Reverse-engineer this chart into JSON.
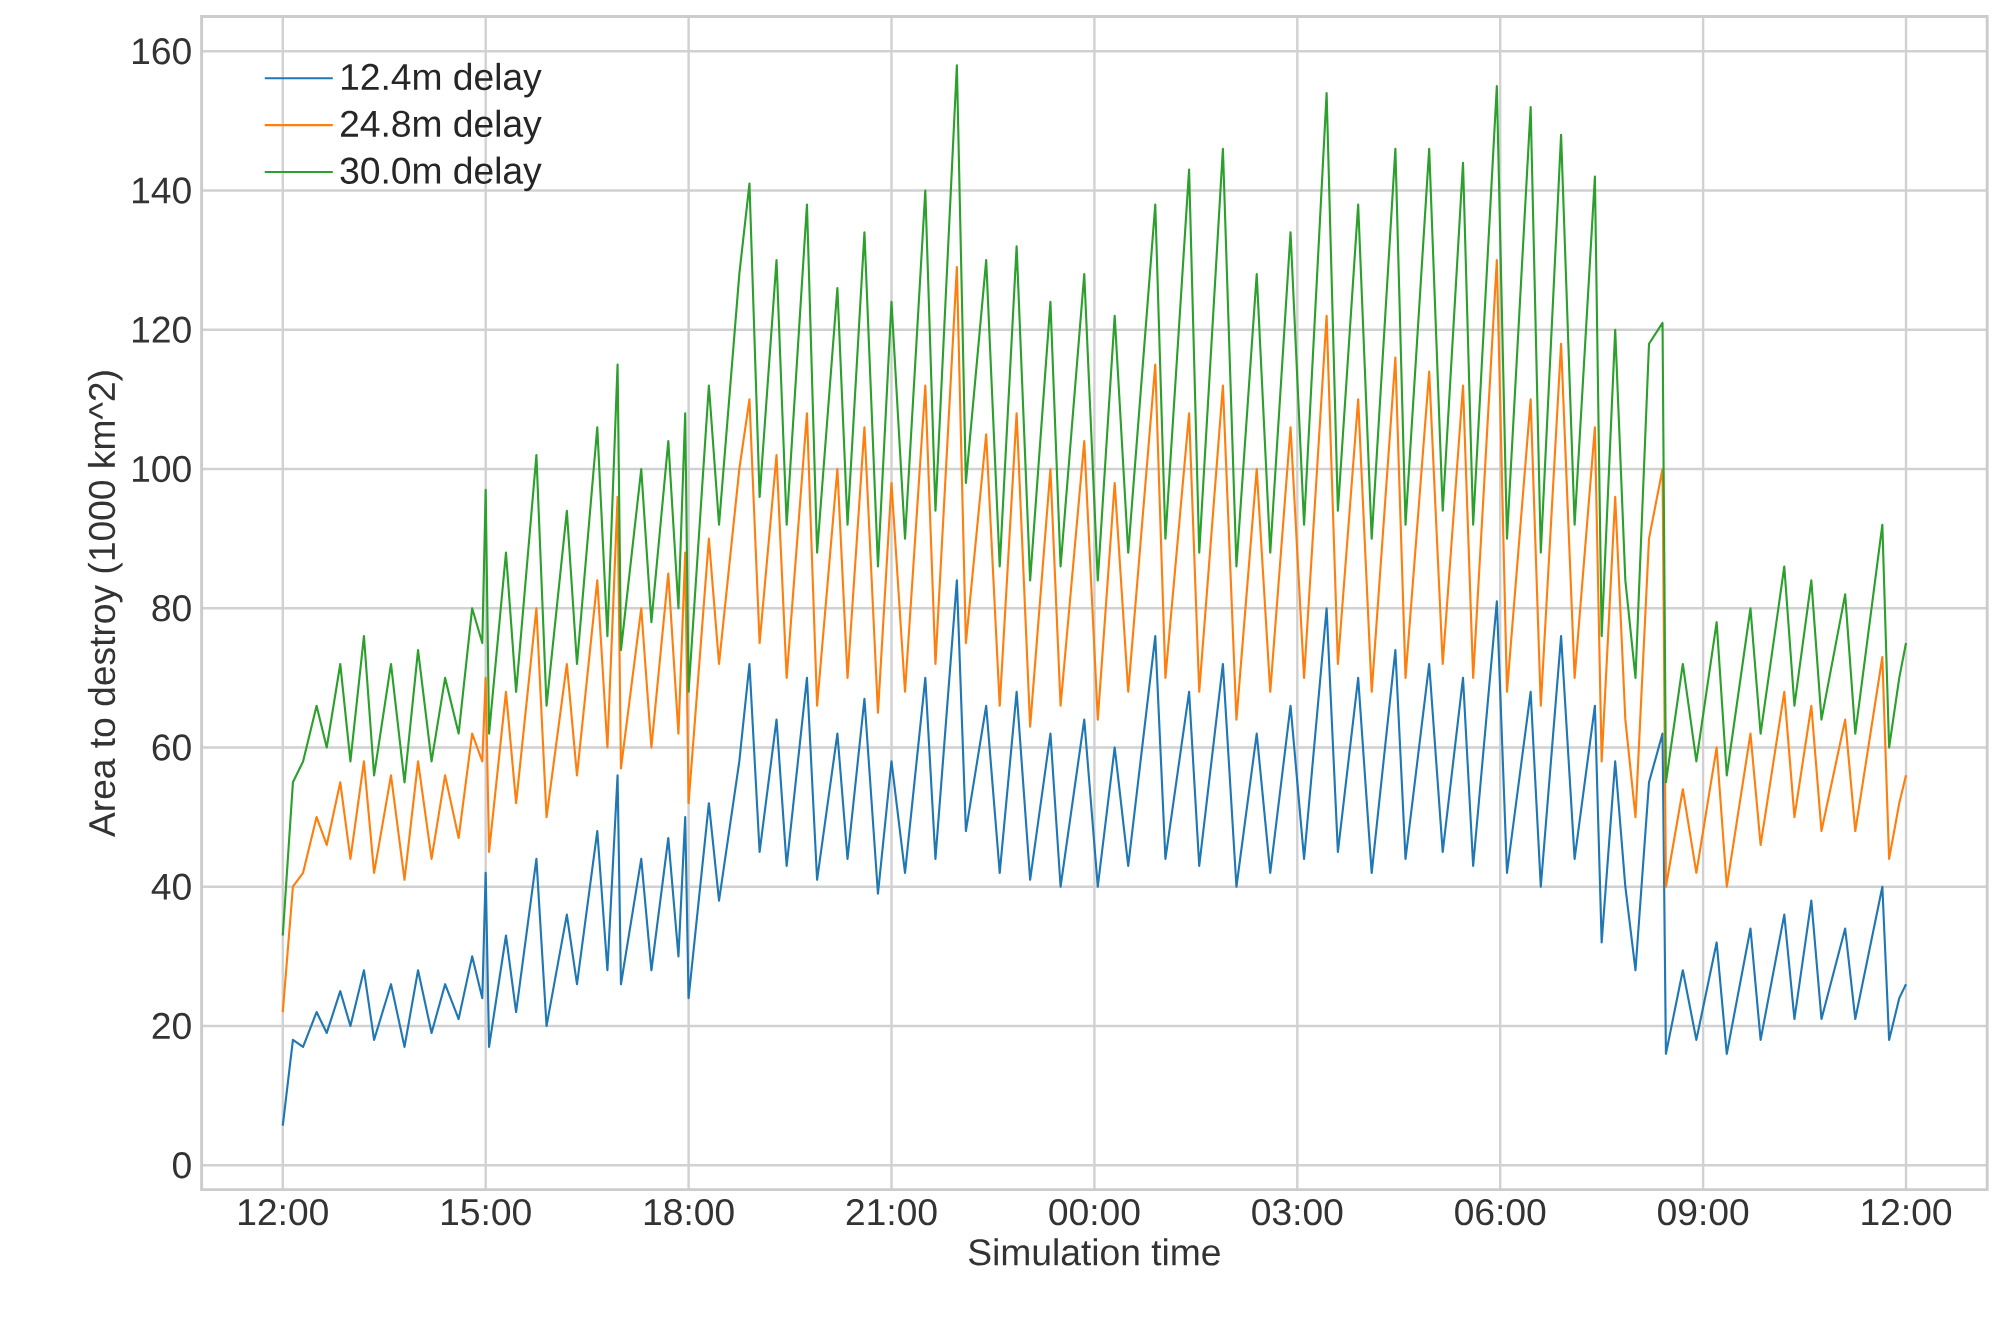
{
  "chart_data": {
    "type": "line",
    "xlabel": "Simulation time",
    "ylabel": "Area to destroy (1000 km^2)",
    "x": [
      "2000-01-01T12:00",
      "2000-01-01T12:09",
      "2000-01-01T12:18",
      "2000-01-01T12:30",
      "2000-01-01T12:39",
      "2000-01-01T12:51",
      "2000-01-01T13:00",
      "2000-01-01T13:12",
      "2000-01-01T13:21",
      "2000-01-01T13:36",
      "2000-01-01T13:48",
      "2000-01-01T14:00",
      "2000-01-01T14:12",
      "2000-01-01T14:24",
      "2000-01-01T14:36",
      "2000-01-01T14:48",
      "2000-01-01T14:57",
      "2000-01-01T15:00",
      "2000-01-01T15:03",
      "2000-01-01T15:18",
      "2000-01-01T15:27",
      "2000-01-01T15:45",
      "2000-01-01T15:54",
      "2000-01-01T16:12",
      "2000-01-01T16:21",
      "2000-01-01T16:39",
      "2000-01-01T16:48",
      "2000-01-01T16:57",
      "2000-01-01T17:00",
      "2000-01-01T17:18",
      "2000-01-01T17:27",
      "2000-01-01T17:42",
      "2000-01-01T17:51",
      "2000-01-01T17:57",
      "2000-01-01T18:00",
      "2000-01-01T18:18",
      "2000-01-01T18:27",
      "2000-01-01T18:45",
      "2000-01-01T18:54",
      "2000-01-01T19:03",
      "2000-01-01T19:18",
      "2000-01-01T19:27",
      "2000-01-01T19:45",
      "2000-01-01T19:54",
      "2000-01-01T20:12",
      "2000-01-01T20:21",
      "2000-01-01T20:36",
      "2000-01-01T20:48",
      "2000-01-01T21:00",
      "2000-01-01T21:12",
      "2000-01-01T21:30",
      "2000-01-01T21:39",
      "2000-01-01T21:58",
      "2000-01-01T22:06",
      "2000-01-01T22:24",
      "2000-01-01T22:36",
      "2000-01-01T22:51",
      "2000-01-01T23:03",
      "2000-01-01T23:21",
      "2000-01-01T23:30",
      "2000-01-01T23:51",
      "2000-01-02T00:03",
      "2000-01-02T00:18",
      "2000-01-02T00:30",
      "2000-01-02T00:54",
      "2000-01-02T01:03",
      "2000-01-02T01:24",
      "2000-01-02T01:33",
      "2000-01-02T01:54",
      "2000-01-02T02:06",
      "2000-01-02T02:24",
      "2000-01-02T02:36",
      "2000-01-02T02:54",
      "2000-01-02T03:06",
      "2000-01-02T03:26",
      "2000-01-02T03:36",
      "2000-01-02T03:54",
      "2000-01-02T04:06",
      "2000-01-02T04:27",
      "2000-01-02T04:36",
      "2000-01-02T04:57",
      "2000-01-02T05:09",
      "2000-01-02T05:27",
      "2000-01-02T05:36",
      "2000-01-02T05:57",
      "2000-01-02T06:06",
      "2000-01-02T06:27",
      "2000-01-02T06:36",
      "2000-01-02T06:54",
      "2000-01-02T07:06",
      "2000-01-02T07:24",
      "2000-01-02T07:30",
      "2000-01-02T07:42",
      "2000-01-02T07:51",
      "2000-01-02T08:00",
      "2000-01-02T08:12",
      "2000-01-02T08:24",
      "2000-01-02T08:27",
      "2000-01-02T08:42",
      "2000-01-02T08:54",
      "2000-01-02T09:12",
      "2000-01-02T09:21",
      "2000-01-02T09:42",
      "2000-01-02T09:51",
      "2000-01-02T10:12",
      "2000-01-02T10:21",
      "2000-01-02T10:36",
      "2000-01-02T10:45",
      "2000-01-02T11:06",
      "2000-01-02T11:15",
      "2000-01-02T11:39",
      "2000-01-02T11:45",
      "2000-01-02T11:54",
      "2000-01-02T12:00"
    ],
    "series": [
      {
        "name": "12.4m delay",
        "color": "#1f77b4",
        "values": [
          5.7,
          18,
          17,
          22,
          19,
          25,
          20,
          28,
          18,
          26,
          17,
          28,
          19,
          26,
          21,
          30,
          24,
          42,
          17,
          33,
          22,
          44,
          20,
          36,
          26,
          48,
          28,
          56,
          26,
          44,
          28,
          47,
          30,
          50,
          24,
          52,
          38,
          58,
          72,
          45,
          64,
          43,
          70,
          41,
          62,
          44,
          67,
          39,
          58,
          42,
          70,
          44,
          84,
          48,
          66,
          42,
          68,
          41,
          62,
          40,
          64,
          40,
          60,
          43,
          76,
          44,
          68,
          43,
          72,
          40,
          62,
          42,
          66,
          44,
          80,
          45,
          70,
          42,
          74,
          44,
          72,
          45,
          70,
          43,
          81,
          42,
          68,
          40,
          76,
          44,
          66,
          32,
          58,
          40,
          28,
          55,
          62,
          16,
          28,
          18,
          32,
          16,
          34,
          18,
          36,
          21,
          38,
          21,
          34,
          21,
          40,
          18,
          24,
          26
        ]
      },
      {
        "name": "24.8m delay",
        "color": "#ff7f0e",
        "values": [
          22,
          40,
          42,
          50,
          46,
          55,
          44,
          58,
          42,
          56,
          41,
          58,
          44,
          56,
          47,
          62,
          58,
          70,
          45,
          68,
          52,
          80,
          50,
          72,
          56,
          84,
          60,
          96,
          57,
          80,
          60,
          85,
          62,
          88,
          52,
          90,
          72,
          100,
          110,
          75,
          102,
          70,
          108,
          66,
          100,
          70,
          106,
          65,
          98,
          68,
          112,
          72,
          129,
          75,
          105,
          66,
          108,
          63,
          100,
          66,
          104,
          64,
          98,
          68,
          115,
          70,
          108,
          68,
          112,
          64,
          100,
          68,
          106,
          70,
          122,
          72,
          110,
          68,
          116,
          70,
          114,
          72,
          112,
          70,
          130,
          68,
          110,
          66,
          118,
          70,
          106,
          58,
          96,
          64,
          50,
          90,
          100,
          40,
          54,
          42,
          60,
          40,
          62,
          46,
          68,
          50,
          66,
          48,
          64,
          48,
          73,
          44,
          52,
          56
        ]
      },
      {
        "name": "30.0m delay",
        "color": "#2ca02c",
        "values": [
          33,
          55,
          58,
          66,
          60,
          72,
          58,
          76,
          56,
          72,
          55,
          74,
          58,
          70,
          62,
          80,
          75,
          97,
          62,
          88,
          68,
          102,
          66,
          94,
          72,
          106,
          76,
          115,
          74,
          100,
          78,
          104,
          80,
          108,
          68,
          112,
          92,
          128,
          141,
          96,
          130,
          92,
          138,
          88,
          126,
          92,
          134,
          86,
          124,
          90,
          140,
          94,
          158,
          98,
          130,
          86,
          132,
          84,
          124,
          86,
          128,
          84,
          122,
          88,
          138,
          90,
          143,
          88,
          146,
          86,
          128,
          88,
          134,
          92,
          154,
          94,
          138,
          90,
          146,
          92,
          146,
          94,
          144,
          92,
          155,
          90,
          152,
          88,
          148,
          92,
          142,
          76,
          120,
          84,
          70,
          118,
          121,
          55,
          72,
          58,
          78,
          56,
          80,
          62,
          86,
          66,
          84,
          64,
          82,
          62,
          92,
          60,
          70,
          75
        ]
      }
    ],
    "xlim": [
      "2000-01-01T10:48",
      "2000-01-02T13:12"
    ],
    "ylim": [
      -3.5,
      165
    ],
    "xticks": [
      {
        "value": "2000-01-01T12:00",
        "label": "12:00"
      },
      {
        "value": "2000-01-01T15:00",
        "label": "15:00"
      },
      {
        "value": "2000-01-01T18:00",
        "label": "18:00"
      },
      {
        "value": "2000-01-01T21:00",
        "label": "21:00"
      },
      {
        "value": "2000-01-02T00:00",
        "label": "00:00"
      },
      {
        "value": "2000-01-02T03:00",
        "label": "03:00"
      },
      {
        "value": "2000-01-02T06:00",
        "label": "06:00"
      },
      {
        "value": "2000-01-02T09:00",
        "label": "09:00"
      },
      {
        "value": "2000-01-02T12:00",
        "label": "12:00"
      }
    ],
    "yticks": [
      0,
      20,
      40,
      60,
      80,
      100,
      120,
      140,
      160
    ],
    "grid": true,
    "legend": "top left"
  }
}
